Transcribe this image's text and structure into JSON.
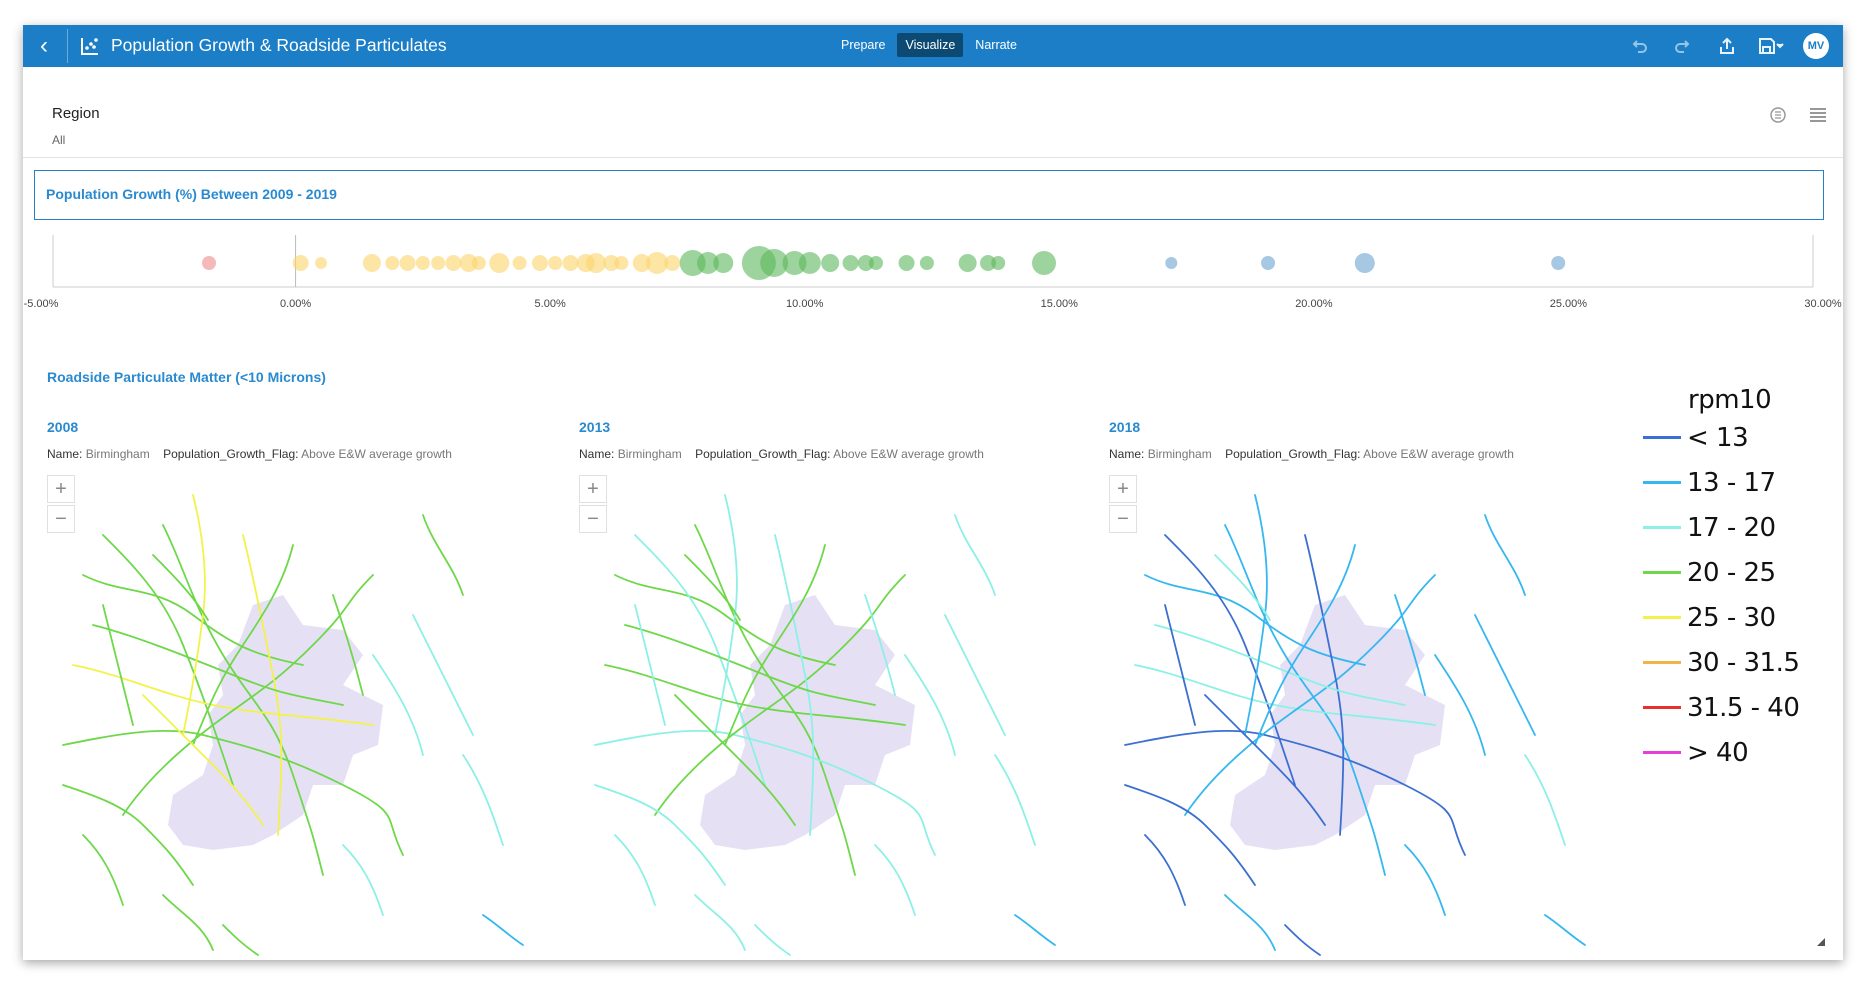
{
  "header": {
    "title": "Population Growth & Roadside Particulates",
    "modes": [
      {
        "label": "Prepare",
        "active": false
      },
      {
        "label": "Visualize",
        "active": true
      },
      {
        "label": "Narrate",
        "active": false
      }
    ],
    "user_initials": "MV",
    "icons": [
      "back-icon",
      "chart-app-icon",
      "undo-icon",
      "redo-icon",
      "share-icon",
      "save-icon",
      "avatar"
    ]
  },
  "filter": {
    "label": "Region",
    "value": "All"
  },
  "colors": {
    "header_bg": "#1b7ec6",
    "accent_text": "#2a8ad0",
    "negative": "#f08b8b",
    "low_growth": "#fbd36b",
    "mid_growth": "#5cb85c",
    "high_growth": "#6aa3d0",
    "region_fill": "#e6e0f5"
  },
  "chart_data": {
    "type": "scatter",
    "title": "Population Growth (%) Between 2009 - 2019",
    "xlim": [
      -5,
      30
    ],
    "x_ticks": [
      "-5.00%",
      "0.00%",
      "5.00%",
      "10.00%",
      "15.00%",
      "20.00%",
      "25.00%",
      "30.00%"
    ],
    "series": [
      {
        "color": "#f08b8b",
        "points": [
          {
            "x": -1.7,
            "size": 7
          }
        ]
      },
      {
        "color": "#fbd36b",
        "points": [
          {
            "x": 0.1,
            "size": 8
          },
          {
            "x": 0.5,
            "size": 6
          },
          {
            "x": 1.5,
            "size": 9
          },
          {
            "x": 1.9,
            "size": 7
          },
          {
            "x": 2.2,
            "size": 8
          },
          {
            "x": 2.5,
            "size": 7
          },
          {
            "x": 2.8,
            "size": 7
          },
          {
            "x": 3.1,
            "size": 8
          },
          {
            "x": 3.4,
            "size": 9
          },
          {
            "x": 3.6,
            "size": 7
          },
          {
            "x": 4.0,
            "size": 10
          },
          {
            "x": 4.4,
            "size": 7
          },
          {
            "x": 4.8,
            "size": 8
          },
          {
            "x": 5.1,
            "size": 7
          },
          {
            "x": 5.4,
            "size": 8
          },
          {
            "x": 5.7,
            "size": 9
          },
          {
            "x": 5.9,
            "size": 10
          },
          {
            "x": 6.2,
            "size": 8
          },
          {
            "x": 6.4,
            "size": 7
          },
          {
            "x": 6.8,
            "size": 9
          },
          {
            "x": 7.1,
            "size": 11
          },
          {
            "x": 7.4,
            "size": 8
          }
        ]
      },
      {
        "color": "#5cb85c",
        "points": [
          {
            "x": 7.8,
            "size": 13
          },
          {
            "x": 8.1,
            "size": 11
          },
          {
            "x": 8.4,
            "size": 10
          },
          {
            "x": 9.1,
            "size": 17
          },
          {
            "x": 9.4,
            "size": 14
          },
          {
            "x": 9.8,
            "size": 12
          },
          {
            "x": 10.1,
            "size": 11
          },
          {
            "x": 10.5,
            "size": 9
          },
          {
            "x": 10.9,
            "size": 8
          },
          {
            "x": 11.2,
            "size": 8
          },
          {
            "x": 11.4,
            "size": 7
          },
          {
            "x": 12.0,
            "size": 8
          },
          {
            "x": 12.4,
            "size": 7
          },
          {
            "x": 13.2,
            "size": 9
          },
          {
            "x": 13.6,
            "size": 8
          },
          {
            "x": 13.8,
            "size": 7
          },
          {
            "x": 14.7,
            "size": 12
          }
        ]
      },
      {
        "color": "#6aa3d0",
        "points": [
          {
            "x": 17.2,
            "size": 6
          },
          {
            "x": 19.1,
            "size": 7
          },
          {
            "x": 21.0,
            "size": 10
          },
          {
            "x": 24.8,
            "size": 7
          }
        ]
      }
    ]
  },
  "maps": {
    "section_title": "Roadside Particulate Matter (<10 Microns)",
    "name_key": "Name:",
    "flag_key": "Population_Growth_Flag:",
    "panels": [
      {
        "year": "2008",
        "name": "Birmingham",
        "flag": "Above E&W average growth"
      },
      {
        "year": "2013",
        "name": "Birmingham",
        "flag": "Above E&W average growth"
      },
      {
        "year": "2018",
        "name": "Birmingham",
        "flag": "Above E&W average growth"
      }
    ],
    "zoom_in": "+",
    "zoom_out": "−"
  },
  "legend": {
    "title": "rpm10",
    "items": [
      {
        "label": "< 13",
        "color": "#3b6fd1"
      },
      {
        "label": "13 - 17",
        "color": "#35b7f0"
      },
      {
        "label": "17 - 20",
        "color": "#8cf0e6"
      },
      {
        "label": "20 - 25",
        "color": "#6ed84a"
      },
      {
        "label": "25 - 30",
        "color": "#f2f24a"
      },
      {
        "label": "30 - 31.5",
        "color": "#f2b347"
      },
      {
        "label": "31.5 - 40",
        "color": "#e8302c"
      },
      {
        "label": "> 40",
        "color": "#e63fd9"
      }
    ]
  }
}
